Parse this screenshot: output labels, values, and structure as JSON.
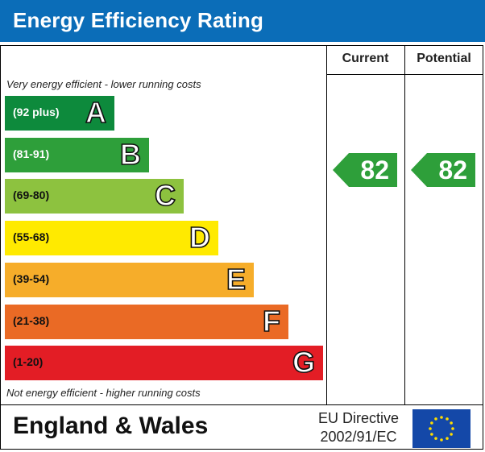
{
  "header": {
    "title": "Energy Efficiency Rating"
  },
  "columns": {
    "current": "Current",
    "potential": "Potential"
  },
  "captions": {
    "top": "Very energy efficient - lower running costs",
    "bottom": "Not energy efficient - higher running costs"
  },
  "bands": [
    {
      "range": "(92 plus)",
      "letter": "A",
      "color": "#0d8a3c"
    },
    {
      "range": "(81-91)",
      "letter": "B",
      "color": "#2e9f3a"
    },
    {
      "range": "(69-80)",
      "letter": "C",
      "color": "#8dc23f"
    },
    {
      "range": "(55-68)",
      "letter": "D",
      "color": "#ffea00"
    },
    {
      "range": "(39-54)",
      "letter": "E",
      "color": "#f6ad2a"
    },
    {
      "range": "(21-38)",
      "letter": "F",
      "color": "#ea6a25"
    },
    {
      "range": "(1-20)",
      "letter": "G",
      "color": "#e31d25"
    }
  ],
  "ratings": {
    "current": "82",
    "potential": "82",
    "color": "#2e9f3a"
  },
  "footer": {
    "region": "England & Wales",
    "directive_line1": "EU Directive",
    "directive_line2": "2002/91/EC",
    "flag_color": "#1448a8",
    "star_color": "#ffdd00"
  }
}
